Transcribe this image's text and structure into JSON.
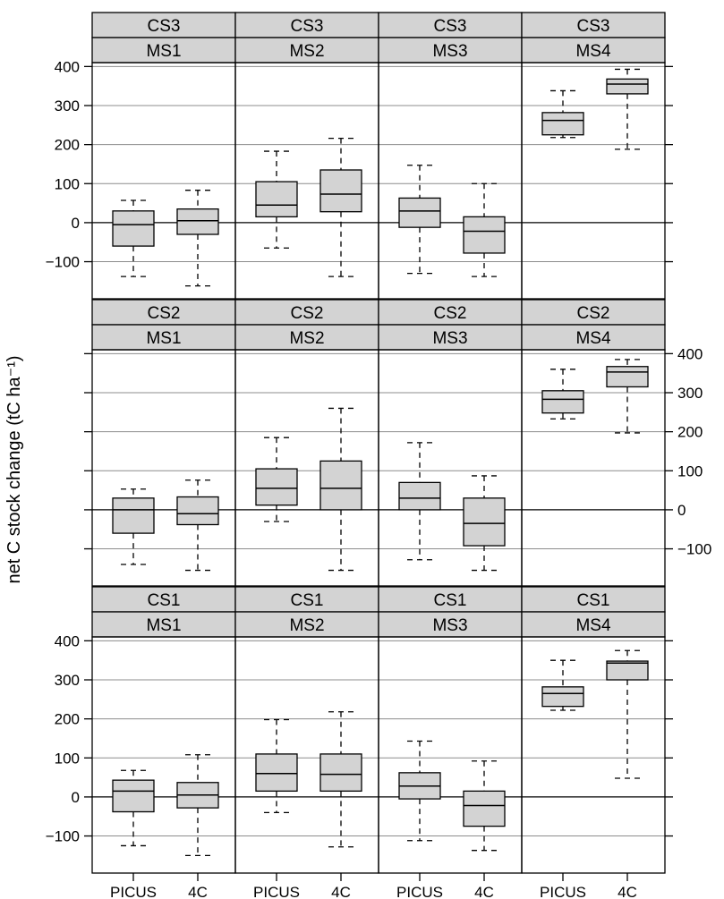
{
  "chart_data": {
    "type": "boxplot",
    "ylabel": "net C stock change (tC ha⁻¹)",
    "yticks": [
      -100,
      0,
      100,
      200,
      300,
      400
    ],
    "ytick_labels": [
      "−100",
      "0",
      "100",
      "200",
      "300",
      "400"
    ],
    "ylim": [
      -195,
      410
    ],
    "x_categories": [
      "PICUS",
      "4C"
    ],
    "box_fill": "#d3d3d3",
    "strip_fill": "#d3d3d3",
    "rows": [
      {
        "cs": "CS3",
        "axis_side": "left",
        "panels": [
          {
            "cs": "CS3",
            "ms": "MS1",
            "boxes": [
              {
                "x": "PICUS",
                "min": -138,
                "q1": -60,
                "median": -5,
                "q3": 30,
                "max": 57
              },
              {
                "x": "4C",
                "min": -162,
                "q1": -30,
                "median": 5,
                "q3": 35,
                "max": 83
              }
            ]
          },
          {
            "cs": "CS3",
            "ms": "MS2",
            "boxes": [
              {
                "x": "PICUS",
                "min": -65,
                "q1": 15,
                "median": 45,
                "q3": 105,
                "max": 183
              },
              {
                "x": "4C",
                "min": -138,
                "q1": 28,
                "median": 73,
                "q3": 135,
                "max": 216
              }
            ]
          },
          {
            "cs": "CS3",
            "ms": "MS3",
            "boxes": [
              {
                "x": "PICUS",
                "min": -130,
                "q1": -12,
                "median": 30,
                "q3": 63,
                "max": 147
              },
              {
                "x": "4C",
                "min": -138,
                "q1": -78,
                "median": -22,
                "q3": 15,
                "max": 100
              }
            ]
          },
          {
            "cs": "CS3",
            "ms": "MS4",
            "boxes": [
              {
                "x": "PICUS",
                "min": 218,
                "q1": 225,
                "median": 262,
                "q3": 282,
                "max": 338
              },
              {
                "x": "4C",
                "min": 188,
                "q1": 330,
                "median": 355,
                "q3": 368,
                "max": 393
              }
            ]
          }
        ]
      },
      {
        "cs": "CS2",
        "axis_side": "right",
        "panels": [
          {
            "cs": "CS2",
            "ms": "MS1",
            "boxes": [
              {
                "x": "PICUS",
                "min": -140,
                "q1": -60,
                "median": 0,
                "q3": 30,
                "max": 53
              },
              {
                "x": "4C",
                "min": -155,
                "q1": -38,
                "median": -10,
                "q3": 33,
                "max": 76
              }
            ]
          },
          {
            "cs": "CS2",
            "ms": "MS2",
            "boxes": [
              {
                "x": "PICUS",
                "min": -30,
                "q1": 12,
                "median": 55,
                "q3": 105,
                "max": 185
              },
              {
                "x": "4C",
                "min": -155,
                "q1": 0,
                "median": 55,
                "q3": 125,
                "max": 260
              }
            ]
          },
          {
            "cs": "CS2",
            "ms": "MS3",
            "boxes": [
              {
                "x": "PICUS",
                "min": -128,
                "q1": 0,
                "median": 30,
                "q3": 70,
                "max": 172
              },
              {
                "x": "4C",
                "min": -155,
                "q1": -92,
                "median": -35,
                "q3": 30,
                "max": 87
              }
            ]
          },
          {
            "cs": "CS2",
            "ms": "MS4",
            "boxes": [
              {
                "x": "PICUS",
                "min": 233,
                "q1": 248,
                "median": 283,
                "q3": 305,
                "max": 360
              },
              {
                "x": "4C",
                "min": 197,
                "q1": 315,
                "median": 353,
                "q3": 367,
                "max": 385
              }
            ]
          }
        ]
      },
      {
        "cs": "CS1",
        "axis_side": "left",
        "panels": [
          {
            "cs": "CS1",
            "ms": "MS1",
            "boxes": [
              {
                "x": "PICUS",
                "min": -125,
                "q1": -38,
                "median": 15,
                "q3": 43,
                "max": 68
              },
              {
                "x": "4C",
                "min": -150,
                "q1": -28,
                "median": 5,
                "q3": 37,
                "max": 108
              }
            ]
          },
          {
            "cs": "CS1",
            "ms": "MS2",
            "boxes": [
              {
                "x": "PICUS",
                "min": -40,
                "q1": 15,
                "median": 60,
                "q3": 110,
                "max": 198
              },
              {
                "x": "4C",
                "min": -128,
                "q1": 15,
                "median": 58,
                "q3": 110,
                "max": 218
              }
            ]
          },
          {
            "cs": "CS1",
            "ms": "MS3",
            "boxes": [
              {
                "x": "PICUS",
                "min": -112,
                "q1": -5,
                "median": 28,
                "q3": 62,
                "max": 143
              },
              {
                "x": "4C",
                "min": -137,
                "q1": -75,
                "median": -22,
                "q3": 15,
                "max": 92
              }
            ]
          },
          {
            "cs": "CS1",
            "ms": "MS4",
            "boxes": [
              {
                "x": "PICUS",
                "min": 222,
                "q1": 232,
                "median": 265,
                "q3": 282,
                "max": 350
              },
              {
                "x": "4C",
                "min": 48,
                "q1": 300,
                "median": 343,
                "q3": 348,
                "max": 375
              }
            ]
          }
        ]
      }
    ]
  }
}
